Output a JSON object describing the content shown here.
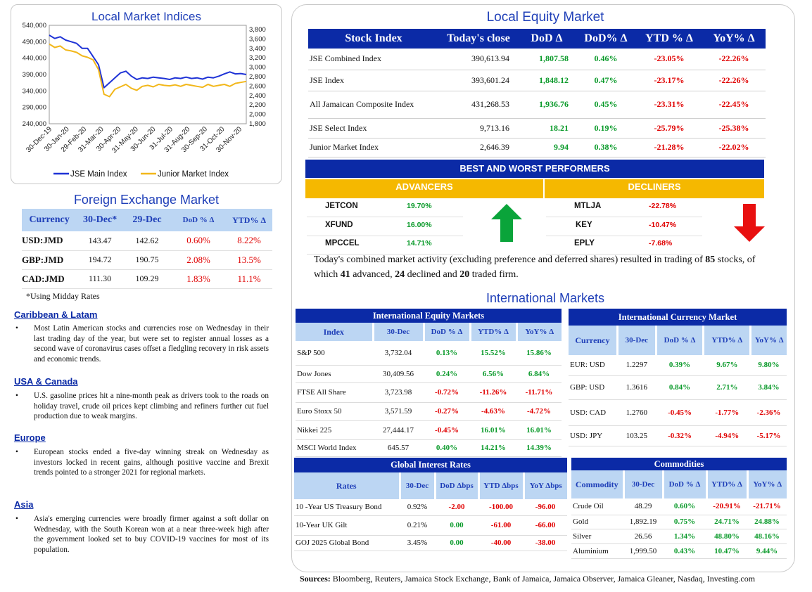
{
  "local_indices": {
    "title": "Local Market Indices",
    "chart_data": {
      "type": "line",
      "x_tick_labels": [
        "30-Dec-19",
        "30-Jan-20",
        "29-Feb-20",
        "31-Mar-20",
        "30-Apr-20",
        "31-May-20",
        "30-Jun-20",
        "31-Jul-20",
        "31-Aug-20",
        "30-Sep-20",
        "31-Oct-20",
        "30-Nov-20"
      ],
      "y_left_ticks": [
        "540,000",
        "490,000",
        "440,000",
        "390,000",
        "340,000",
        "290,000",
        "240,000"
      ],
      "y_right_ticks": [
        "3,800",
        "3,600",
        "3,400",
        "3,200",
        "3,000",
        "2,800",
        "2,600",
        "2,400",
        "2,200",
        "2,000",
        "1,800"
      ],
      "ylim_left": [
        240000,
        540000
      ],
      "ylim_right": [
        1800,
        3800
      ],
      "series": [
        {
          "name": "JSE Main Index",
          "axis": "left",
          "color": "#1e32d6",
          "values": [
            510000,
            500000,
            505000,
            495000,
            490000,
            485000,
            470000,
            470000,
            445000,
            420000,
            350000,
            365000,
            380000,
            395000,
            400000,
            385000,
            375000,
            380000,
            378000,
            382000,
            380000,
            378000,
            375000,
            380000,
            378000,
            382000,
            378000,
            380000,
            376000,
            382000,
            380000,
            385000,
            392000,
            398000,
            392000,
            393000,
            390000
          ]
        },
        {
          "name": "Junior Market Index",
          "axis": "right",
          "color": "#f2b71a",
          "values": [
            3420,
            3350,
            3380,
            3300,
            3280,
            3250,
            3180,
            3150,
            3100,
            2900,
            2400,
            2350,
            2500,
            2550,
            2600,
            2520,
            2480,
            2560,
            2580,
            2550,
            2600,
            2580,
            2570,
            2590,
            2560,
            2600,
            2580,
            2560,
            2540,
            2600,
            2560,
            2580,
            2600,
            2560,
            2620,
            2640,
            2660
          ]
        }
      ],
      "legend_position": "bottom"
    }
  },
  "fx": {
    "title": "Foreign Exchange Market",
    "headers": [
      "Currency",
      "30-Dec*",
      "29-Dec",
      "DoD % Δ",
      "YTD% Δ"
    ],
    "rows": [
      {
        "name": "USD:JMD",
        "c1": "143.47",
        "c2": "142.62",
        "dod": "0.60%",
        "ytd": "8.22%"
      },
      {
        "name": "GBP:JMD",
        "c1": "194.72",
        "c2": "190.75",
        "dod": "2.08%",
        "ytd": "13.5%"
      },
      {
        "name": "CAD:JMD",
        "c1": "111.30",
        "c2": "109.29",
        "dod": "1.83%",
        "ytd": "11.1%"
      }
    ],
    "note": "*Using Midday Rates"
  },
  "news": [
    {
      "head": "Caribbean & Latam",
      "body": "Most Latin American stocks and currencies rose on Wednesday in their last trading day of the year, but were set to register annual losses as a second wave of coronavirus cases offset a fledgling recovery in risk assets and economic trends."
    },
    {
      "head": "USA & Canada",
      "body": "U.S. gasoline prices hit a nine-month peak as drivers took to the roads on holiday travel, crude oil prices kept climbing and refiners further cut fuel production due to weak margins."
    },
    {
      "head": "Europe",
      "body": "European stocks ended a five-day winning streak on Wednesday as investors locked in recent gains, although positive vaccine and Brexit trends pointed to a stronger 2021 for regional markets."
    },
    {
      "head": "Asia",
      "body": "Asia's emerging currencies were broadly firmer against a soft dollar on Wednesday, with the South Korean won at a near three-week high after the government looked set to buy COVID-19 vaccines for most of its population."
    }
  ],
  "equity": {
    "title": "Local Equity Market",
    "headers": [
      "Stock Index",
      "Today's close",
      "DoD  Δ",
      "DoD% Δ",
      "YTD % Δ",
      "YoY% Δ"
    ],
    "rows": [
      {
        "name": "JSE Combined Index",
        "close": "390,613.94",
        "dod": "1,807.58",
        "dodp": "0.46%",
        "ytd": "-23.05%",
        "yoy": "-22.26%"
      },
      {
        "name": "JSE Index",
        "close": "393,601.24",
        "dod": "1,848.12",
        "dodp": "0.47%",
        "ytd": "-23.17%",
        "yoy": "-22.26%"
      },
      {
        "name": "All Jamaican Composite Index",
        "close": "431,268.53",
        "dod": "1,936.76",
        "dodp": "0.45%",
        "ytd": "-23.31%",
        "yoy": "-22.45%"
      },
      {
        "name": "JSE Select Index",
        "close": "9,713.16",
        "dod": "18.21",
        "dodp": "0.19%",
        "ytd": "-25.79%",
        "yoy": "-25.38%"
      },
      {
        "name": "Junior Market Index",
        "close": "2,646.39",
        "dod": "9.94",
        "dodp": "0.38%",
        "ytd": "-21.28%",
        "yoy": "-22.02%"
      }
    ]
  },
  "performers": {
    "title": "BEST AND WORST PERFORMERS",
    "advancers_label": "ADVANCERS",
    "decliners_label": "DECLINERS",
    "advancers": [
      {
        "ticker": "JETCON",
        "pct": "19.70%"
      },
      {
        "ticker": "XFUND",
        "pct": "16.00%"
      },
      {
        "ticker": "MPCCEL",
        "pct": "14.71%"
      }
    ],
    "decliners": [
      {
        "ticker": "MTLJA",
        "pct": "-22.78%"
      },
      {
        "ticker": "KEY",
        "pct": "-10.47%"
      },
      {
        "ticker": "EPLY",
        "pct": "-7.68%"
      }
    ]
  },
  "summary": {
    "part1": "Today's combined market activity (excluding preference and deferred shares) resulted in trading of ",
    "total": "85",
    "part2": " stocks, of which ",
    "advanced": "41",
    "part3": " advanced, ",
    "declined": "24",
    "part4": " declined and ",
    "firm": "20",
    "part5": " traded firm."
  },
  "intl": {
    "title": "International Markets",
    "equity": {
      "title": "International Equity Markets",
      "headers": [
        "Index",
        "30-Dec",
        "DoD % Δ",
        "YTD% Δ",
        "YoY% Δ"
      ],
      "rows": [
        {
          "name": "S&P 500",
          "v": "3,732.04",
          "dod": "0.13%",
          "ytd": "15.52%",
          "yoy": "15.86%"
        },
        {
          "name": "Dow Jones",
          "v": "30,409.56",
          "dod": "0.24%",
          "ytd": "6.56%",
          "yoy": "6.84%"
        },
        {
          "name": "FTSE All Share",
          "v": "3,723.98",
          "dod": "-0.72%",
          "ytd": "-11.26%",
          "yoy": "-11.71%"
        },
        {
          "name": "Euro Stoxx 50",
          "v": "3,571.59",
          "dod": "-0.27%",
          "ytd": "-4.63%",
          "yoy": "-4.72%"
        },
        {
          "name": "Nikkei 225",
          "v": "27,444.17",
          "dod": "-0.45%",
          "ytd": "16.01%",
          "yoy": "16.01%"
        },
        {
          "name": "MSCI World Index",
          "v": "645.57",
          "dod": "0.40%",
          "ytd": "14.21%",
          "yoy": "14.39%"
        }
      ]
    },
    "currency": {
      "title": "International Currency Market",
      "headers": [
        "Currency",
        "30-Dec",
        "DoD % Δ",
        "YTD% Δ",
        "YoY% Δ"
      ],
      "rows": [
        {
          "name": "EUR: USD",
          "v": "1.2297",
          "dod": "0.39%",
          "ytd": "9.67%",
          "yoy": "9.80%"
        },
        {
          "name": "GBP: USD",
          "v": "1.3616",
          "dod": "0.84%",
          "ytd": "2.71%",
          "yoy": "3.84%"
        },
        {
          "name": "USD: CAD",
          "v": "1.2760",
          "dod": "-0.45%",
          "ytd": "-1.77%",
          "yoy": "-2.36%"
        },
        {
          "name": "USD: JPY",
          "v": "103.25",
          "dod": "-0.32%",
          "ytd": "-4.94%",
          "yoy": "-5.17%"
        }
      ]
    },
    "rates": {
      "title": "Global Interest Rates",
      "headers": [
        "Rates",
        "30-Dec",
        "DoD Δbps",
        "YTD Δbps",
        "YoY Δbps"
      ],
      "rows": [
        {
          "name": "10 -Year US Treasury Bond",
          "v": "0.92%",
          "dod": "-2.00",
          "ytd": "-100.00",
          "yoy": "-96.00"
        },
        {
          "name": "10-Year UK Gilt",
          "v": "0.21%",
          "dod": "0.00",
          "ytd": "-61.00",
          "yoy": "-66.00"
        },
        {
          "name": "GOJ 2025 Global Bond",
          "v": "3.45%",
          "dod": "0.00",
          "ytd": "-40.00",
          "yoy": "-38.00"
        }
      ]
    },
    "commodities": {
      "title": "Commodities",
      "headers": [
        "Commodity",
        "30-Dec",
        "DoD % Δ",
        "YTD% Δ",
        "YoY% Δ"
      ],
      "rows": [
        {
          "name": "Crude Oil",
          "v": "48.29",
          "dod": "0.60%",
          "ytd": "-20.91%",
          "yoy": "-21.71%"
        },
        {
          "name": "Gold",
          "v": "1,892.19",
          "dod": "0.75%",
          "ytd": "24.71%",
          "yoy": "24.88%"
        },
        {
          "name": "Silver",
          "v": "26.56",
          "dod": "1.34%",
          "ytd": "48.80%",
          "yoy": "48.16%"
        },
        {
          "name": "Aluminium",
          "v": "1,999.50",
          "dod": "0.43%",
          "ytd": "10.47%",
          "yoy": "9.44%"
        }
      ]
    }
  },
  "sources": {
    "label": "Sources:",
    "text": " Bloomberg, Reuters, Jamaica Stock Exchange, Bank of Jamaica, Jamaica Observer, Jamaica Gleaner, Nasdaq, Investing.com"
  },
  "colors": {
    "positive": "#0a9a2a",
    "negative": "#e00000",
    "header_blue": "#0b2aa6",
    "header_light": "#bcd6f3",
    "gold": "#f5b800"
  }
}
